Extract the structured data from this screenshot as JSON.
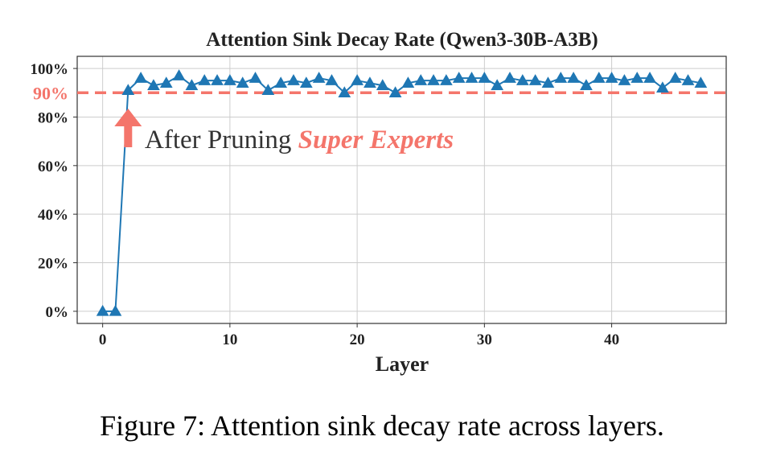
{
  "chart_data": {
    "type": "line",
    "title": "Attention Sink Decay Rate (Qwen3-30B-A3B)",
    "xlabel": "Layer",
    "ylabel": "",
    "xlim": [
      -2,
      49
    ],
    "ylim": [
      -5,
      105
    ],
    "x_ticks": [
      0,
      10,
      20,
      30,
      40
    ],
    "y_ticks": [
      0,
      20,
      40,
      60,
      80,
      100
    ],
    "y_tick_labels": [
      "0%",
      "20%",
      "40%",
      "60%",
      "80%",
      "100%"
    ],
    "grid": true,
    "series": [
      {
        "marker": "triangle-up",
        "color": "#1f77b4",
        "x": [
          0,
          1,
          2,
          3,
          4,
          5,
          6,
          7,
          8,
          9,
          10,
          11,
          12,
          13,
          14,
          15,
          16,
          17,
          18,
          19,
          20,
          21,
          22,
          23,
          24,
          25,
          26,
          27,
          28,
          29,
          30,
          31,
          32,
          33,
          34,
          35,
          36,
          37,
          38,
          39,
          40,
          41,
          42,
          43,
          44,
          45,
          46,
          47
        ],
        "y": [
          0,
          0,
          91,
          96,
          93,
          94,
          97,
          93,
          95,
          95,
          95,
          94,
          96,
          91,
          94,
          95,
          94,
          96,
          95,
          90,
          95,
          94,
          93,
          90,
          94,
          95,
          95,
          95,
          96,
          96,
          96,
          93,
          96,
          95,
          95,
          94,
          96,
          96,
          93,
          96,
          96,
          95,
          96,
          96,
          92,
          96,
          95,
          94
        ]
      }
    ],
    "reference_line": {
      "y": 90,
      "label": "90%",
      "color": "#f4756b",
      "style": "dashed"
    },
    "annotation": {
      "text_plain": "After Pruning ",
      "text_emph": "Super Experts",
      "emph_color": "#f4756b",
      "arrow_color": "#f4756b",
      "arrow_x": 2
    }
  },
  "caption": "Figure 7: Attention sink decay rate across layers."
}
